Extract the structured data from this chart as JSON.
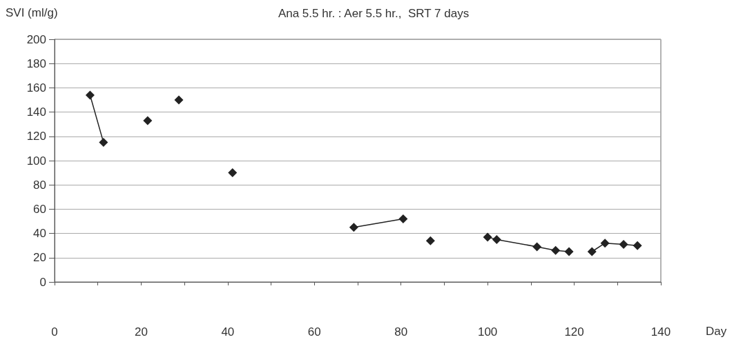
{
  "chart_data": {
    "type": "line",
    "title": "Ana 5.5 hr. : Aer 5.5 hr.,  SRT 7 days",
    "ylabel": "SVI (ml/g)",
    "xlabel": "Day",
    "series": [
      {
        "color": "#222222",
        "x": [
          8.2,
          11.3
        ],
        "values": [
          154,
          115
        ]
      },
      {
        "color": "#222222",
        "x": [
          21.5
        ],
        "values": [
          133
        ]
      },
      {
        "color": "#222222",
        "x": [
          28.7
        ],
        "values": [
          150
        ]
      },
      {
        "color": "#222222",
        "x": [
          41.1
        ],
        "values": [
          90
        ]
      },
      {
        "color": "#222222",
        "x": [
          69.1,
          80.5
        ],
        "values": [
          45,
          52
        ]
      },
      {
        "color": "#222222",
        "x": [
          86.8
        ],
        "values": [
          34
        ]
      },
      {
        "color": "#222222",
        "x": [
          100,
          102.1,
          111.4,
          115.7,
          118.8
        ],
        "values": [
          37,
          35,
          29,
          26,
          25
        ]
      },
      {
        "color": "#222222",
        "x": [
          124.1,
          127.1,
          131.4,
          134.6
        ],
        "values": [
          25,
          32,
          31,
          30
        ]
      }
    ],
    "xlim": [
      0,
      140
    ],
    "xticks": [
      0,
      {
        "value": 10,
        "label": null
      },
      20,
      {
        "value": 30,
        "label": null
      },
      40,
      {
        "value": 50,
        "label": null
      },
      60,
      {
        "value": 70,
        "label": null
      },
      80,
      {
        "value": 90,
        "label": null
      },
      100,
      {
        "value": 110,
        "label": null
      },
      120,
      {
        "value": 130,
        "label": null
      },
      140
    ],
    "ylim": [
      0,
      200
    ],
    "yticks": [
      0,
      20,
      40,
      60,
      80,
      100,
      120,
      140,
      160,
      180,
      200
    ],
    "grid": "y",
    "marker": "diamond",
    "line_style": "solid"
  }
}
